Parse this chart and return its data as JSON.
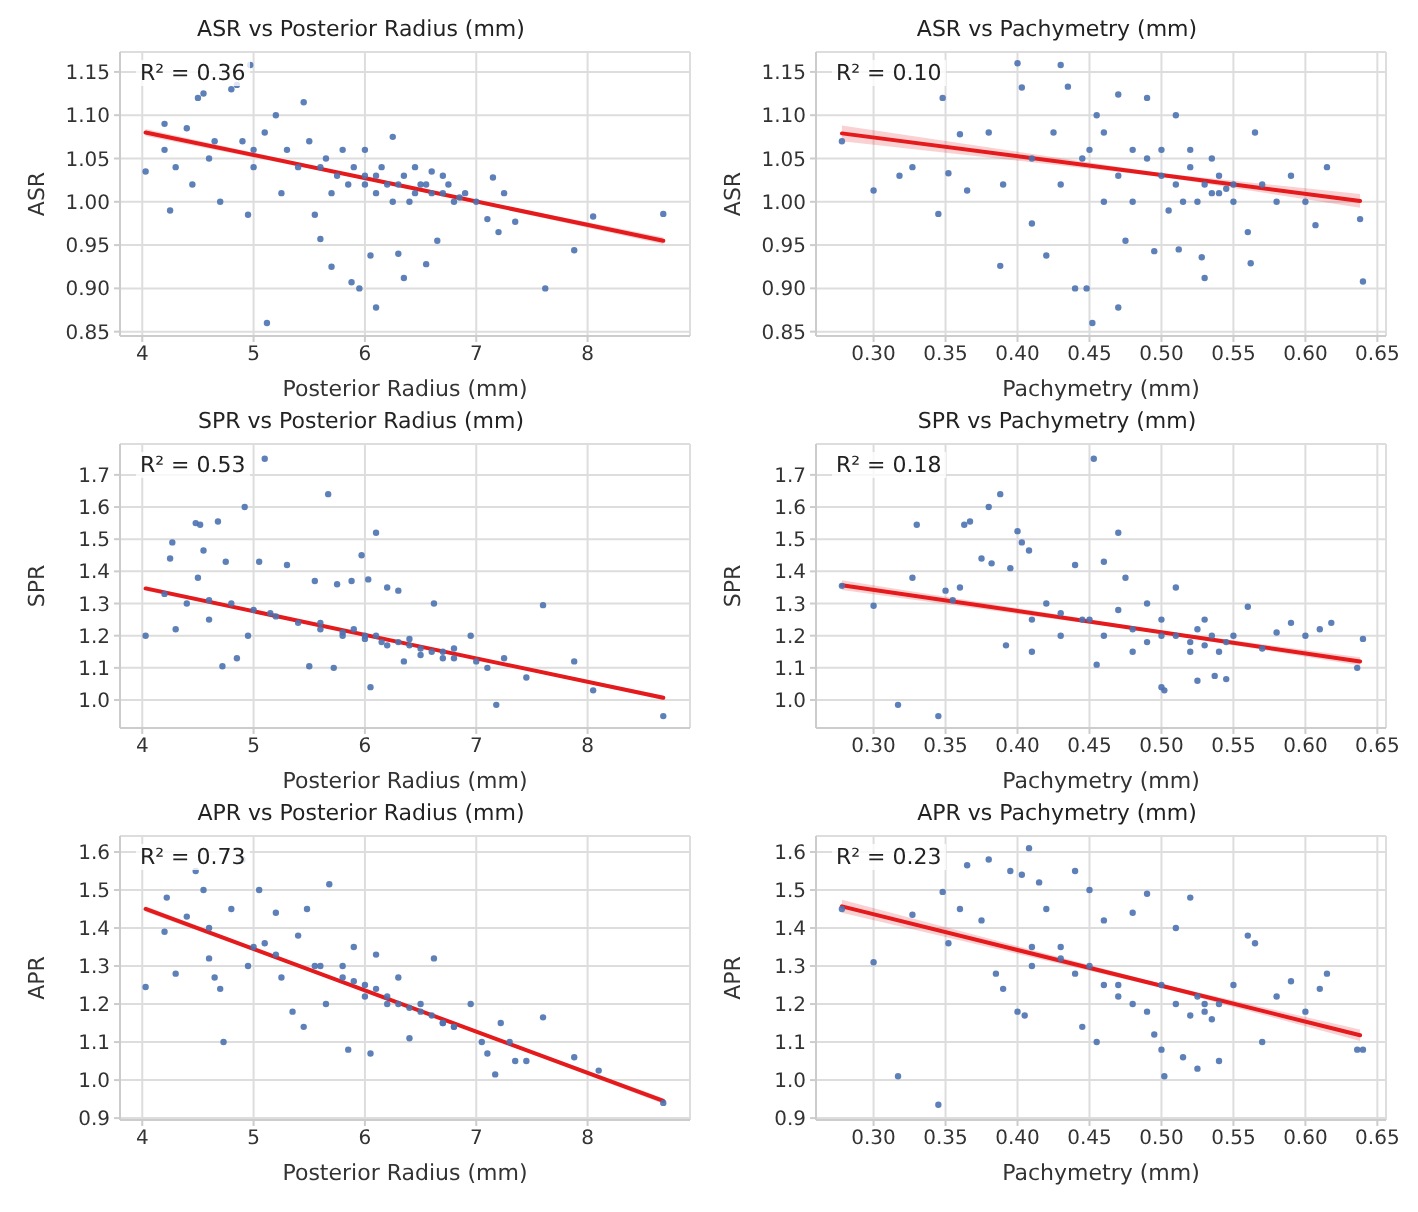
{
  "chart_data": [
    {
      "type": "scatter",
      "title": "ASR vs Posterior Radius (mm)",
      "xlabel": "Posterior Radius (mm)",
      "ylabel": "ASR",
      "annotations": [
        "R² = 0.36"
      ],
      "grid": true,
      "xlim": [
        3.8,
        8.92
      ],
      "xticks": [
        4,
        5,
        6,
        7,
        8
      ],
      "ylim": [
        0.845,
        1.173
      ],
      "yticks": [
        0.85,
        {
          "value": 0.9,
          "label": "0.90"
        },
        0.95,
        {
          "value": 1.0,
          "label": "1.00"
        },
        1.05,
        {
          "value": 1.1,
          "label": "1.10"
        },
        1.15
      ],
      "series": [
        {
          "marker": "circle",
          "color": "#4c72b0",
          "x": [
            4.03,
            4.2,
            4.2,
            4.25,
            4.3,
            4.4,
            4.45,
            4.5,
            4.55,
            4.6,
            4.7,
            4.8,
            4.85,
            4.9,
            4.95,
            4.97,
            5.0,
            5.1,
            5.12,
            5.2,
            5.25,
            5.3,
            5.4,
            5.45,
            5.5,
            5.55,
            5.6,
            5.65,
            5.7,
            5.75,
            5.8,
            5.85,
            5.88,
            5.95,
            6.0,
            6.0,
            6.05,
            6.1,
            6.1,
            6.15,
            6.25,
            6.3,
            6.3,
            6.35,
            6.4,
            6.45,
            6.5,
            6.55,
            6.6,
            6.65,
            6.7,
            6.8,
            6.9,
            7.0,
            7.1,
            7.15,
            7.2,
            7.25,
            7.35,
            7.62,
            7.88,
            8.05,
            8.68,
            5.9,
            6.0,
            6.1,
            6.2,
            6.25,
            6.35,
            6.45,
            6.55,
            6.6,
            6.7,
            6.75,
            6.85,
            5.6,
            5.7,
            4.65,
            5.0
          ],
          "values": [
            1.035,
            1.09,
            1.06,
            0.99,
            1.04,
            1.085,
            1.02,
            1.12,
            1.125,
            1.05,
            1.0,
            1.13,
            1.135,
            1.07,
            0.985,
            1.158,
            1.04,
            1.08,
            0.86,
            1.1,
            1.01,
            1.06,
            1.04,
            1.115,
            1.07,
            0.985,
            0.957,
            1.05,
            0.925,
            1.03,
            1.06,
            1.02,
            0.907,
            0.9,
            1.03,
            1.06,
            0.938,
            0.878,
            1.01,
            1.04,
            1.075,
            0.94,
            1.02,
            0.912,
            1.0,
            1.04,
            1.02,
            0.928,
            1.01,
            0.955,
            1.03,
            1.0,
            1.01,
            1.0,
            0.98,
            1.028,
            0.965,
            1.01,
            0.977,
            0.9,
            0.944,
            0.983,
            0.986,
            1.04,
            1.02,
            1.03,
            1.02,
            1.0,
            1.03,
            1.01,
            1.02,
            1.035,
            1.01,
            1.02,
            1.005,
            1.04,
            1.01,
            1.07,
            1.06
          ]
        },
        {
          "type": "line",
          "color": "#e41a1c",
          "x": [
            4.03,
            6.35,
            8.68
          ],
          "values": [
            1.08,
            1.018,
            0.955
          ],
          "lower": [
            1.076,
            1.0165,
            0.951
          ],
          "upper": [
            1.084,
            1.0185,
            0.959
          ]
        }
      ]
    },
    {
      "type": "scatter",
      "title": "ASR vs Pachymetry (mm)",
      "xlabel": "Pachymetry (mm)",
      "ylabel": "ASR",
      "annotations": [
        "R² = 0.10"
      ],
      "grid": true,
      "xlim": [
        0.26,
        0.656
      ],
      "xticks": [
        {
          "value": 0.3,
          "label": "0.30"
        },
        0.35,
        {
          "value": 0.4,
          "label": "0.40"
        },
        0.45,
        {
          "value": 0.5,
          "label": "0.50"
        },
        0.55,
        {
          "value": 0.6,
          "label": "0.60"
        },
        0.65
      ],
      "ylim": [
        0.845,
        1.173
      ],
      "yticks": [
        0.85,
        {
          "value": 0.9,
          "label": "0.90"
        },
        0.95,
        {
          "value": 1.0,
          "label": "1.00"
        },
        1.05,
        {
          "value": 1.1,
          "label": "1.10"
        },
        1.15
      ],
      "series": [
        {
          "marker": "circle",
          "color": "#4c72b0",
          "x": [
            0.278,
            0.3,
            0.318,
            0.327,
            0.345,
            0.348,
            0.352,
            0.36,
            0.365,
            0.38,
            0.388,
            0.39,
            0.4,
            0.403,
            0.41,
            0.42,
            0.425,
            0.43,
            0.435,
            0.44,
            0.445,
            0.448,
            0.452,
            0.455,
            0.46,
            0.47,
            0.47,
            0.475,
            0.48,
            0.49,
            0.495,
            0.5,
            0.505,
            0.51,
            0.512,
            0.52,
            0.525,
            0.528,
            0.53,
            0.535,
            0.54,
            0.55,
            0.56,
            0.562,
            0.565,
            0.57,
            0.58,
            0.59,
            0.6,
            0.607,
            0.615,
            0.638,
            0.64,
            0.45,
            0.47,
            0.48,
            0.49,
            0.5,
            0.51,
            0.515,
            0.52,
            0.53,
            0.535,
            0.54,
            0.545,
            0.43,
            0.41,
            0.46,
            0.55
          ],
          "values": [
            1.07,
            1.013,
            1.03,
            1.04,
            0.986,
            1.12,
            1.033,
            1.078,
            1.013,
            1.08,
            0.926,
            1.02,
            1.16,
            1.132,
            0.975,
            0.938,
            1.08,
            1.158,
            1.133,
            0.9,
            1.05,
            0.9,
            0.86,
            1.1,
            1.0,
            0.878,
            1.124,
            0.955,
            1.06,
            1.12,
            0.943,
            1.03,
            0.99,
            1.1,
            0.945,
            1.04,
            1.0,
            0.936,
            0.912,
            1.05,
            1.01,
            1.02,
            0.965,
            0.929,
            1.08,
            1.02,
            1.0,
            1.03,
            1.0,
            0.973,
            1.04,
            0.98,
            0.908,
            1.06,
            1.03,
            1.0,
            1.05,
            1.06,
            1.02,
            1.0,
            1.06,
            1.02,
            1.01,
            1.03,
            1.015,
            1.02,
            1.05,
            1.08,
            1.0
          ]
        },
        {
          "type": "line",
          "color": "#e41a1c",
          "x": [
            0.278,
            0.5,
            0.638
          ],
          "values": [
            1.079,
            1.031,
            1.001
          ],
          "lower": [
            1.07,
            1.029,
            0.993
          ],
          "upper": [
            1.088,
            1.033,
            1.009
          ]
        }
      ]
    },
    {
      "type": "scatter",
      "title": "SPR vs Posterior Radius (mm)",
      "xlabel": "Posterior Radius (mm)",
      "ylabel": "SPR",
      "annotations": [
        "R² = 0.53"
      ],
      "grid": true,
      "xlim": [
        3.8,
        8.92
      ],
      "xticks": [
        4,
        5,
        6,
        7,
        8
      ],
      "ylim": [
        0.913,
        1.796
      ],
      "yticks": [
        {
          "value": 1.0,
          "label": "1.0"
        },
        1.1,
        1.2,
        1.3,
        1.4,
        1.5,
        1.6,
        1.7
      ],
      "series": [
        {
          "marker": "circle",
          "color": "#4c72b0",
          "x": [
            4.03,
            4.2,
            4.25,
            4.27,
            4.3,
            4.4,
            4.48,
            4.52,
            4.5,
            4.55,
            4.6,
            4.68,
            4.72,
            4.75,
            4.8,
            4.85,
            4.92,
            4.95,
            5.05,
            5.1,
            5.15,
            5.3,
            5.4,
            5.5,
            5.55,
            5.6,
            5.67,
            5.72,
            5.75,
            5.8,
            5.88,
            5.97,
            6.0,
            6.03,
            6.05,
            6.1,
            6.15,
            6.2,
            6.3,
            6.35,
            6.4,
            6.5,
            6.62,
            6.7,
            6.8,
            6.95,
            7.0,
            7.1,
            7.18,
            7.25,
            7.45,
            7.6,
            7.88,
            8.05,
            8.68,
            5.9,
            6.0,
            6.1,
            6.2,
            6.3,
            6.4,
            6.5,
            6.6,
            6.7,
            6.8,
            5.6,
            5.2,
            5.0,
            4.6,
            5.8
          ],
          "values": [
            1.2,
            1.33,
            1.44,
            1.49,
            1.22,
            1.3,
            1.55,
            1.545,
            1.38,
            1.465,
            1.25,
            1.555,
            1.105,
            1.43,
            1.3,
            1.13,
            1.6,
            1.2,
            1.43,
            1.75,
            1.27,
            1.42,
            1.24,
            1.105,
            1.37,
            1.22,
            1.64,
            1.1,
            1.36,
            1.2,
            1.37,
            1.45,
            1.2,
            1.375,
            1.04,
            1.52,
            1.18,
            1.35,
            1.34,
            1.12,
            1.17,
            1.16,
            1.3,
            1.15,
            1.13,
            1.2,
            1.12,
            1.1,
            0.985,
            1.13,
            1.07,
            1.295,
            1.12,
            1.03,
            0.95,
            1.22,
            1.19,
            1.2,
            1.17,
            1.18,
            1.19,
            1.14,
            1.15,
            1.13,
            1.16,
            1.24,
            1.26,
            1.28,
            1.31,
            1.21
          ]
        },
        {
          "type": "line",
          "color": "#e41a1c",
          "x": [
            4.03,
            6.35,
            8.68
          ],
          "values": [
            1.347,
            1.177,
            1.007
          ],
          "lower": [
            1.34,
            1.175,
            1.0
          ],
          "upper": [
            1.354,
            1.179,
            1.014
          ]
        }
      ]
    },
    {
      "type": "scatter",
      "title": "SPR vs Pachymetry (mm)",
      "xlabel": "Pachymetry (mm)",
      "ylabel": "SPR",
      "annotations": [
        "R² = 0.18"
      ],
      "grid": true,
      "xlim": [
        0.26,
        0.656
      ],
      "xticks": [
        {
          "value": 0.3,
          "label": "0.30"
        },
        0.35,
        {
          "value": 0.4,
          "label": "0.40"
        },
        0.45,
        {
          "value": 0.5,
          "label": "0.50"
        },
        0.55,
        {
          "value": 0.6,
          "label": "0.60"
        },
        0.65
      ],
      "ylim": [
        0.913,
        1.796
      ],
      "yticks": [
        {
          "value": 1.0,
          "label": "1.0"
        },
        1.1,
        1.2,
        1.3,
        1.4,
        1.5,
        1.6,
        1.7
      ],
      "series": [
        {
          "marker": "circle",
          "color": "#4c72b0",
          "x": [
            0.278,
            0.3,
            0.317,
            0.327,
            0.33,
            0.345,
            0.35,
            0.355,
            0.36,
            0.363,
            0.367,
            0.375,
            0.38,
            0.382,
            0.388,
            0.392,
            0.395,
            0.4,
            0.403,
            0.408,
            0.41,
            0.42,
            0.43,
            0.44,
            0.445,
            0.453,
            0.455,
            0.46,
            0.47,
            0.475,
            0.48,
            0.49,
            0.5,
            0.5,
            0.502,
            0.51,
            0.52,
            0.525,
            0.53,
            0.537,
            0.545,
            0.55,
            0.56,
            0.57,
            0.58,
            0.59,
            0.6,
            0.61,
            0.618,
            0.636,
            0.64,
            0.45,
            0.46,
            0.47,
            0.48,
            0.49,
            0.5,
            0.51,
            0.52,
            0.525,
            0.53,
            0.535,
            0.54,
            0.545,
            0.43,
            0.41
          ],
          "values": [
            1.355,
            1.293,
            0.985,
            1.38,
            1.545,
            0.95,
            1.34,
            1.31,
            1.35,
            1.545,
            1.555,
            1.44,
            1.6,
            1.425,
            1.64,
            1.17,
            1.41,
            1.525,
            1.49,
            1.465,
            1.15,
            1.3,
            1.2,
            1.42,
            1.25,
            1.75,
            1.11,
            1.43,
            1.52,
            1.38,
            1.15,
            1.3,
            1.2,
            1.04,
            1.03,
            1.35,
            1.18,
            1.06,
            1.25,
            1.075,
            1.065,
            1.2,
            1.29,
            1.16,
            1.21,
            1.24,
            1.2,
            1.22,
            1.24,
            1.1,
            1.19,
            1.25,
            1.2,
            1.28,
            1.22,
            1.18,
            1.25,
            1.2,
            1.15,
            1.22,
            1.17,
            1.2,
            1.15,
            1.18,
            1.27,
            1.25
          ]
        },
        {
          "type": "line",
          "color": "#e41a1c",
          "x": [
            0.278,
            0.5,
            0.638
          ],
          "values": [
            1.357,
            1.211,
            1.12
          ],
          "lower": [
            1.342,
            1.207,
            1.107
          ],
          "upper": [
            1.372,
            1.215,
            1.133
          ]
        }
      ]
    },
    {
      "type": "scatter",
      "title": "APR vs Posterior Radius (mm)",
      "xlabel": "Posterior Radius (mm)",
      "ylabel": "APR",
      "annotations": [
        "R² = 0.73"
      ],
      "grid": true,
      "xlim": [
        3.8,
        8.92
      ],
      "xticks": [
        4,
        5,
        6,
        7,
        8
      ],
      "ylim": [
        0.895,
        1.642
      ],
      "yticks": [
        0.9,
        {
          "value": 1.0,
          "label": "1.0"
        },
        1.1,
        1.2,
        1.3,
        1.4,
        1.5,
        1.6
      ],
      "series": [
        {
          "marker": "circle",
          "color": "#4c72b0",
          "x": [
            4.03,
            4.2,
            4.22,
            4.3,
            4.4,
            4.48,
            4.55,
            4.6,
            4.65,
            4.7,
            4.73,
            4.8,
            4.9,
            4.95,
            5.05,
            5.1,
            5.2,
            5.25,
            5.35,
            5.4,
            5.45,
            5.48,
            5.55,
            5.65,
            5.68,
            5.8,
            5.85,
            5.9,
            6.0,
            6.05,
            6.1,
            6.2,
            6.3,
            6.4,
            6.5,
            6.62,
            6.7,
            6.8,
            6.95,
            7.05,
            7.1,
            7.17,
            7.22,
            7.3,
            7.35,
            7.45,
            7.6,
            7.88,
            8.1,
            8.68,
            5.9,
            6.0,
            6.1,
            6.2,
            6.3,
            6.4,
            6.5,
            6.6,
            6.7,
            6.8,
            5.6,
            5.2,
            5.0,
            4.6,
            5.8
          ],
          "values": [
            1.245,
            1.39,
            1.48,
            1.28,
            1.43,
            1.55,
            1.5,
            1.32,
            1.27,
            1.24,
            1.1,
            1.45,
            1.58,
            1.3,
            1.5,
            1.36,
            1.44,
            1.27,
            1.18,
            1.38,
            1.14,
            1.45,
            1.3,
            1.2,
            1.515,
            1.3,
            1.08,
            1.35,
            1.25,
            1.07,
            1.33,
            1.2,
            1.27,
            1.11,
            1.2,
            1.32,
            1.15,
            1.14,
            1.2,
            1.1,
            1.07,
            1.015,
            1.15,
            1.1,
            1.05,
            1.05,
            1.165,
            1.06,
            1.025,
            0.94,
            1.26,
            1.22,
            1.24,
            1.22,
            1.2,
            1.19,
            1.18,
            1.17,
            1.15,
            1.14,
            1.3,
            1.33,
            1.35,
            1.4,
            1.27
          ]
        },
        {
          "type": "line",
          "color": "#e41a1c",
          "x": [
            4.03,
            6.35,
            8.68
          ],
          "values": [
            1.45,
            1.198,
            0.945
          ],
          "lower": [
            1.443,
            1.196,
            0.938
          ],
          "upper": [
            1.457,
            1.2,
            0.952
          ]
        }
      ]
    },
    {
      "type": "scatter",
      "title": "APR vs Pachymetry (mm)",
      "xlabel": "Pachymetry (mm)",
      "ylabel": "APR",
      "annotations": [
        "R² = 0.23"
      ],
      "grid": true,
      "xlim": [
        0.26,
        0.656
      ],
      "xticks": [
        {
          "value": 0.3,
          "label": "0.30"
        },
        0.35,
        {
          "value": 0.4,
          "label": "0.40"
        },
        0.45,
        {
          "value": 0.5,
          "label": "0.50"
        },
        0.55,
        {
          "value": 0.6,
          "label": "0.60"
        },
        0.65
      ],
      "ylim": [
        0.895,
        1.642
      ],
      "yticks": [
        0.9,
        {
          "value": 1.0,
          "label": "1.0"
        },
        1.1,
        1.2,
        1.3,
        1.4,
        1.5,
        1.6
      ],
      "series": [
        {
          "marker": "circle",
          "color": "#4c72b0",
          "x": [
            0.278,
            0.3,
            0.317,
            0.327,
            0.345,
            0.348,
            0.352,
            0.36,
            0.365,
            0.375,
            0.38,
            0.385,
            0.39,
            0.395,
            0.4,
            0.403,
            0.405,
            0.408,
            0.41,
            0.415,
            0.42,
            0.43,
            0.44,
            0.445,
            0.45,
            0.455,
            0.46,
            0.47,
            0.48,
            0.49,
            0.495,
            0.5,
            0.502,
            0.51,
            0.515,
            0.52,
            0.525,
            0.53,
            0.54,
            0.55,
            0.56,
            0.565,
            0.57,
            0.58,
            0.59,
            0.6,
            0.61,
            0.615,
            0.636,
            0.64,
            0.45,
            0.46,
            0.47,
            0.48,
            0.49,
            0.5,
            0.51,
            0.52,
            0.525,
            0.53,
            0.535,
            0.54,
            0.43,
            0.41,
            0.44
          ],
          "values": [
            1.45,
            1.31,
            1.01,
            1.435,
            0.935,
            1.495,
            1.36,
            1.45,
            1.565,
            1.42,
            1.58,
            1.28,
            1.24,
            1.55,
            1.18,
            1.54,
            1.17,
            1.61,
            1.3,
            1.52,
            1.45,
            1.35,
            1.55,
            1.14,
            1.5,
            1.1,
            1.42,
            1.25,
            1.44,
            1.49,
            1.12,
            1.08,
            1.01,
            1.4,
            1.06,
            1.48,
            1.03,
            1.2,
            1.05,
            1.25,
            1.38,
            1.36,
            1.1,
            1.22,
            1.26,
            1.18,
            1.24,
            1.28,
            1.08,
            1.08,
            1.3,
            1.25,
            1.22,
            1.2,
            1.18,
            1.25,
            1.2,
            1.17,
            1.22,
            1.18,
            1.16,
            1.2,
            1.32,
            1.35,
            1.28
          ]
        },
        {
          "type": "line",
          "color": "#e41a1c",
          "x": [
            0.278,
            0.5,
            0.638
          ],
          "values": [
            1.457,
            1.248,
            1.118
          ],
          "lower": [
            1.44,
            1.243,
            1.103
          ],
          "upper": [
            1.474,
            1.253,
            1.133
          ]
        }
      ]
    }
  ]
}
